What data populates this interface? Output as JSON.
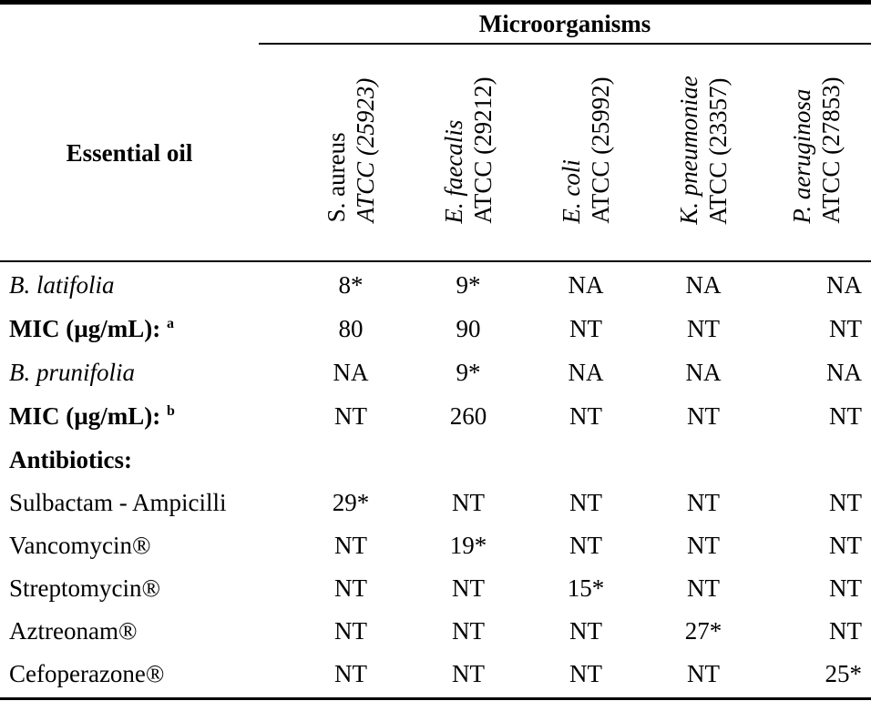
{
  "table": {
    "spanner": "Microorganisms",
    "row_header": "Essential oil",
    "columns": [
      {
        "line1": "S. aureus",
        "line1_italic": false,
        "line2": "ATCC (25923)",
        "line2_italic": true
      },
      {
        "line1": "E. faecalis",
        "line1_italic": true,
        "line2": "ATCC (29212)",
        "line2_italic": false
      },
      {
        "line1": "E. coli",
        "line1_italic": true,
        "line2": "ATCC (25992)",
        "line2_italic": false
      },
      {
        "line1": "K. pneumoniae",
        "line1_italic": true,
        "line2": "ATCC (23357)",
        "line2_italic": false
      },
      {
        "line1": "P. aeruginosa",
        "line1_italic": true,
        "line2": "ATCC (27853)",
        "line2_italic": false
      }
    ],
    "rows": [
      {
        "label": "B. latifolia",
        "style": "italic",
        "sup": "",
        "values": [
          "8*",
          "9*",
          "NA",
          "NA",
          "NA"
        ]
      },
      {
        "label": "MIC (µg/mL): ",
        "style": "bold",
        "sup": "a",
        "values": [
          "80",
          "90",
          "NT",
          "NT",
          "NT"
        ]
      },
      {
        "label": "B. prunifolia",
        "style": "italic",
        "sup": "",
        "values": [
          "NA",
          "9*",
          "NA",
          "NA",
          "NA"
        ]
      },
      {
        "label": "MIC (µg/mL): ",
        "style": "bold",
        "sup": "b",
        "values": [
          "NT",
          "260",
          "NT",
          "NT",
          "NT"
        ]
      },
      {
        "label": "Antibiotics:",
        "style": "bold",
        "sup": "",
        "values": [
          "",
          "",
          "",
          "",
          ""
        ]
      },
      {
        "label": "Sulbactam - Ampicilli",
        "style": "normal",
        "sup": "",
        "values": [
          "29*",
          "NT",
          "NT",
          "NT",
          "NT"
        ]
      },
      {
        "label": "Vancomycin®",
        "style": "normal",
        "sup": "",
        "values": [
          "NT",
          "19*",
          "NT",
          "NT",
          "NT"
        ]
      },
      {
        "label": "Streptomycin®",
        "style": "normal",
        "sup": "",
        "values": [
          "NT",
          "NT",
          "15*",
          "NT",
          "NT"
        ]
      },
      {
        "label": "Aztreonam®",
        "style": "normal",
        "sup": "",
        "values": [
          "NT",
          "NT",
          "NT",
          "27*",
          "NT"
        ]
      },
      {
        "label": "Cefoperazone®",
        "style": "normal",
        "sup": "",
        "values": [
          "NT",
          "NT",
          "NT",
          "NT",
          "25*"
        ]
      }
    ]
  }
}
